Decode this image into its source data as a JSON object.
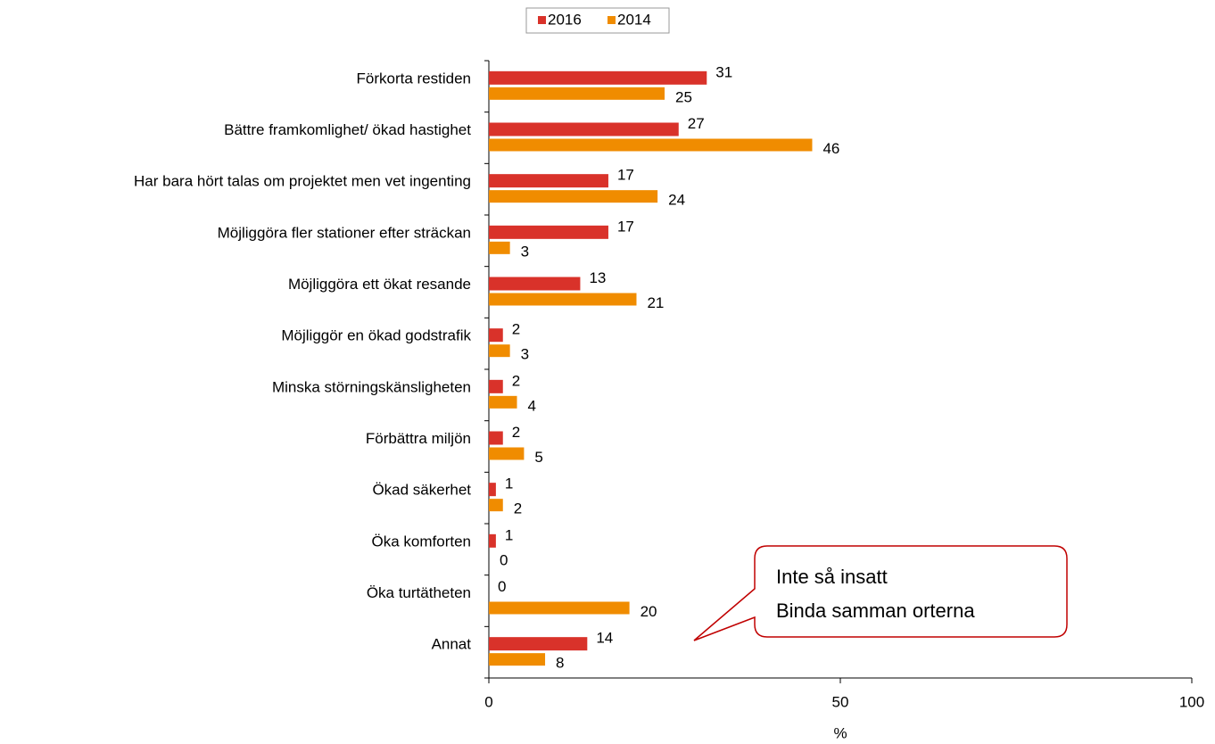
{
  "chart_data": {
    "type": "hbar",
    "categories": [
      "Förkorta restiden",
      "Bättre framkomlighet/ ökad hastighet",
      "Har bara hört talas om projektet men vet ingenting",
      "Möjliggöra fler stationer efter sträckan",
      "Möjliggöra ett ökat resande",
      "Möjliggör en ökad godstrafik",
      "Minska störningskänsligheten",
      "Förbättra miljön",
      "Ökad säkerhet",
      "Öka komforten",
      "Öka turtätheten",
      "Annat"
    ],
    "series": [
      {
        "name": "2016",
        "color": "#d9322a",
        "values": [
          31,
          27,
          17,
          17,
          13,
          2,
          2,
          2,
          1,
          1,
          0,
          14
        ]
      },
      {
        "name": "2014",
        "color": "#f08c00",
        "values": [
          25,
          46,
          24,
          3,
          21,
          3,
          4,
          5,
          2,
          0,
          20,
          8
        ]
      }
    ],
    "xlim": [
      0,
      100
    ],
    "xticks": [
      0,
      50,
      100
    ],
    "xlabel": "%",
    "legend": "top",
    "annotation": [
      "Inte så insatt",
      "Binda samman orterna"
    ]
  }
}
